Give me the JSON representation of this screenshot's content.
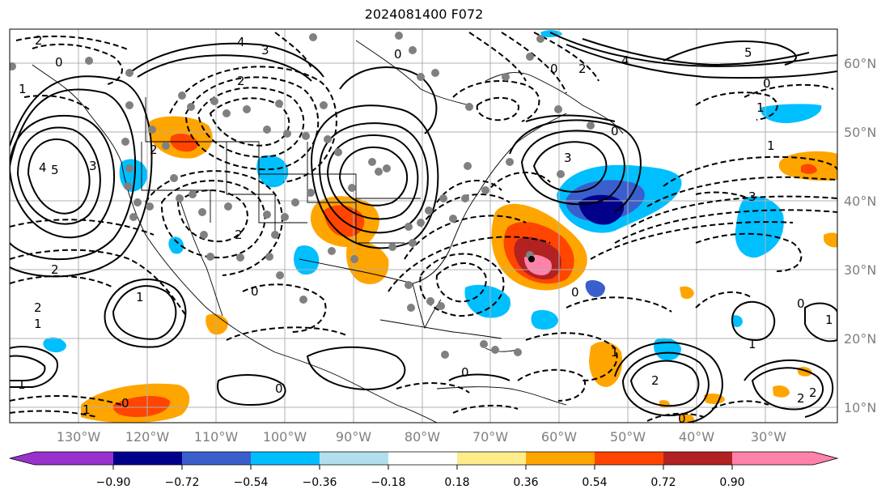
{
  "title": "2024081400 F072",
  "map": {
    "lon_labels": [
      "130°W",
      "120°W",
      "110°W",
      "100°W",
      "90°W",
      "80°W",
      "70°W",
      "60°W",
      "50°W",
      "40°W",
      "30°W"
    ],
    "lat_labels": [
      "60°N",
      "50°N",
      "40°N",
      "30°N",
      "20°N",
      "10°N"
    ],
    "contour_labels": [
      "2",
      "0",
      "4",
      "3",
      "2",
      "4",
      "5",
      "3",
      "1",
      "2",
      "0",
      "2",
      "3",
      "4",
      "5",
      "0",
      "0",
      "1",
      "1",
      "3",
      "2",
      "1",
      "2",
      "0",
      "1",
      "2",
      "1",
      "1",
      "0",
      "0",
      "2",
      "1",
      "0",
      "1",
      "2",
      "0",
      "1",
      "0",
      "2",
      "0",
      "0"
    ]
  },
  "colorbar": {
    "tick_labels": [
      "−0.90",
      "−0.72",
      "−0.54",
      "−0.36",
      "−0.18",
      "0.18",
      "0.36",
      "0.54",
      "0.72",
      "0.90"
    ],
    "colors": [
      "#9932cc",
      "#00008b",
      "#3a5fcd",
      "#00bfff",
      "#b2dfee",
      "#ffffff",
      "#ffec8b",
      "#ffa500",
      "#ff4500",
      "#b22222",
      "#ff82ab"
    ]
  }
}
